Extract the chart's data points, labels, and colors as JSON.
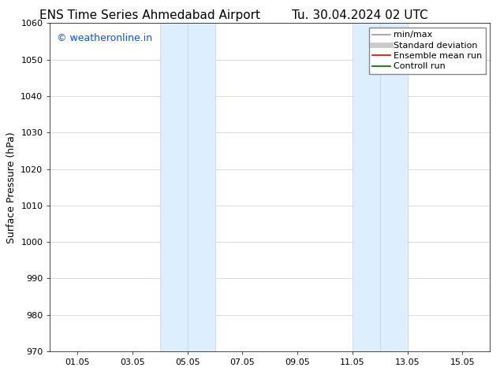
{
  "title_left": "ENS Time Series Ahmedabad Airport",
  "title_right": "Tu. 30.04.2024 02 UTC",
  "ylabel": "Surface Pressure (hPa)",
  "xlim_start": 0,
  "xlim_end": 16,
  "ylim_bottom": 970,
  "ylim_top": 1060,
  "yticks": [
    970,
    980,
    990,
    1000,
    1010,
    1020,
    1030,
    1040,
    1050,
    1060
  ],
  "xtick_labels": [
    "01.05",
    "03.05",
    "05.05",
    "07.05",
    "09.05",
    "11.05",
    "13.05",
    "15.05"
  ],
  "xtick_positions": [
    1,
    3,
    5,
    7,
    9,
    11,
    13,
    15
  ],
  "shaded_bands": [
    {
      "x_start": 4.0,
      "x_end": 5.0,
      "x_start2": 5.0,
      "x_end2": 6.0
    },
    {
      "x_start": 11.0,
      "x_end": 12.0,
      "x_start2": 12.0,
      "x_end2": 13.0
    }
  ],
  "shaded_color": "#ddeeff",
  "shaded_edge_color": "#b8d4e8",
  "background_color": "#ffffff",
  "watermark_text": "© weatheronline.in",
  "watermark_color": "#1155cc",
  "legend_items": [
    {
      "label": "min/max",
      "color": "#999999",
      "lw": 1.2
    },
    {
      "label": "Standard deviation",
      "color": "#cccccc",
      "lw": 5
    },
    {
      "label": "Ensemble mean run",
      "color": "#dd0000",
      "lw": 1.2
    },
    {
      "label": "Controll run",
      "color": "#006600",
      "lw": 1.2
    }
  ],
  "title_fontsize": 11,
  "ylabel_fontsize": 9,
  "tick_fontsize": 8,
  "watermark_fontsize": 9,
  "legend_fontsize": 8,
  "fig_width": 6.34,
  "fig_height": 4.9,
  "dpi": 100
}
